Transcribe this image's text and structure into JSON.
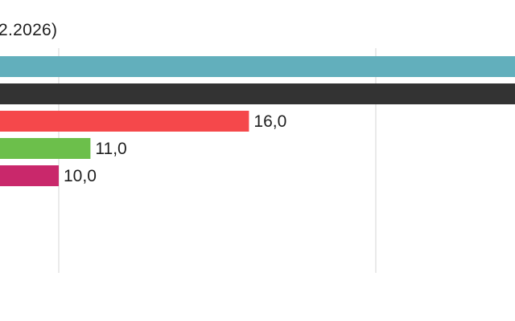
{
  "chart_data": {
    "type": "bar",
    "orientation": "horizontal",
    "title": "2.2026)",
    "xlabel": "",
    "ylabel": "",
    "categories": [
      "",
      "",
      "",
      "",
      ""
    ],
    "values": [
      null,
      null,
      16.0,
      11.0,
      10.0
    ],
    "value_labels": [
      "",
      "",
      "16,0",
      "11,0",
      "10,0"
    ],
    "colors": [
      "#62afbc",
      "#333333",
      "#f5484b",
      "#6cbf4b",
      "#c9286b"
    ],
    "xlim": [
      0,
      30
    ],
    "gridlines_at": [
      10,
      20
    ],
    "grid": true,
    "legend": "none"
  }
}
